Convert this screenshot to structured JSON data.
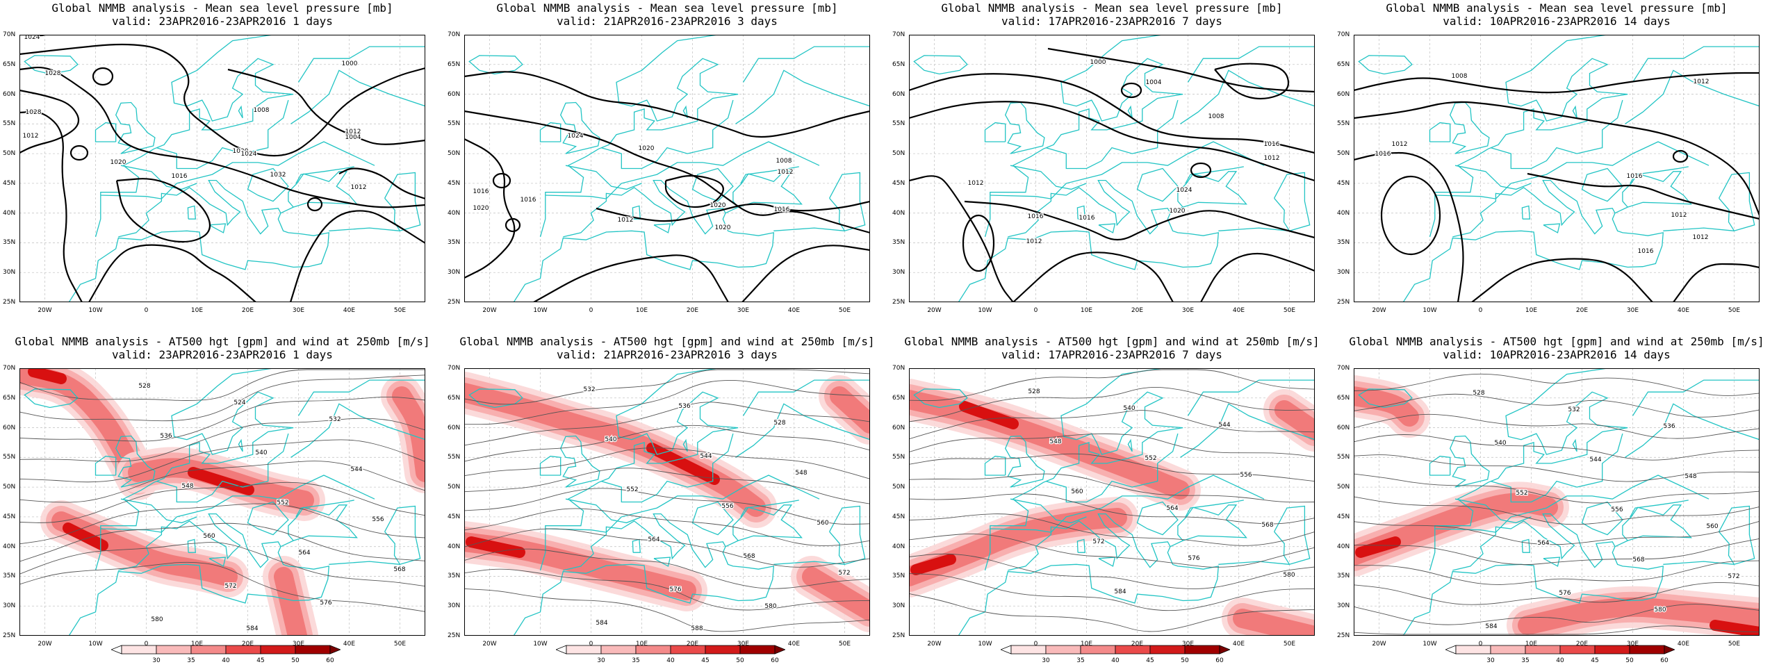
{
  "lon_labels": [
    "20W",
    "10W",
    "0",
    "10E",
    "20E",
    "30E",
    "40E",
    "50E"
  ],
  "lat_labels": [
    "70N",
    "65N",
    "60N",
    "55N",
    "50N",
    "45N",
    "40N",
    "35N",
    "30N",
    "25N"
  ],
  "colorbar_labels": [
    "30",
    "35",
    "40",
    "45",
    "50",
    "60"
  ],
  "colors": {
    "coast": "#22c4c4",
    "contour": "#000000",
    "wind": [
      "#fbd0d0",
      "#f6a0a0",
      "#f06060",
      "#e52020",
      "#c00000"
    ]
  },
  "panels": [
    {
      "id": "mslp-1d",
      "title1": "Global NMMB analysis - Mean sea level pressure [mb]",
      "title2": "valid: 23APR2016-23APR2016  1 days",
      "contour_labels": [
        "1024",
        "1028",
        "1000",
        "1004",
        "1008",
        "1020",
        "1012",
        "1016",
        "1024",
        "1012",
        "1020",
        "1032",
        "1028",
        "1012"
      ]
    },
    {
      "id": "mslp-3d",
      "title1": "Global NMMB analysis - Mean sea level pressure [mb]",
      "title2": "valid: 21APR2016-23APR2016  3 days",
      "contour_labels": [
        "1024",
        "1020",
        "1008",
        "1012",
        "1016",
        "1020",
        "1016",
        "1012",
        "1020",
        "1016",
        "1020"
      ]
    },
    {
      "id": "mslp-7d",
      "title1": "Global NMMB analysis - Mean sea level pressure [mb]",
      "title2": "valid: 17APR2016-23APR2016  7 days",
      "contour_labels": [
        "1000",
        "1004",
        "1008",
        "1012",
        "1016",
        "1020",
        "1024",
        "1012",
        "1016",
        "1016",
        "1012"
      ]
    },
    {
      "id": "mslp-14d",
      "title1": "Global NMMB analysis - Mean sea level pressure [mb]",
      "title2": "valid: 10APR2016-23APR2016  14 days",
      "contour_labels": [
        "1008",
        "1012",
        "1012",
        "1016",
        "1016",
        "1012",
        "1012",
        "1016"
      ]
    },
    {
      "id": "z500-1d",
      "title1": "Global NMMB analysis - AT500 hgt [gpm] and wind at 250mb [m/s]",
      "title2": "valid: 23APR2016-23APR2016  1 days",
      "contour_labels": [
        "528",
        "524",
        "532",
        "536",
        "540",
        "544",
        "548",
        "552",
        "556",
        "560",
        "564",
        "568",
        "572",
        "576",
        "580",
        "584"
      ]
    },
    {
      "id": "z500-3d",
      "title1": "Global NMMB analysis - AT500 hgt [gpm] and wind at 250mb [m/s]",
      "title2": "valid: 21APR2016-23APR2016  3 days",
      "contour_labels": [
        "532",
        "536",
        "528",
        "540",
        "544",
        "548",
        "552",
        "556",
        "560",
        "564",
        "568",
        "572",
        "576",
        "580",
        "584",
        "588"
      ]
    },
    {
      "id": "z500-7d",
      "title1": "Global NMMB analysis - AT500 hgt [gpm] and wind at 250mb [m/s]",
      "title2": "valid: 17APR2016-23APR2016  7 days",
      "contour_labels": [
        "528",
        "540",
        "544",
        "548",
        "552",
        "556",
        "560",
        "564",
        "568",
        "572",
        "576",
        "580",
        "584"
      ]
    },
    {
      "id": "z500-14d",
      "title1": "Global NMMB analysis - AT500 hgt [gpm] and wind at 250mb [m/s]",
      "title2": "valid: 10APR2016-23APR2016  14 days",
      "contour_labels": [
        "528",
        "532",
        "536",
        "540",
        "544",
        "548",
        "552",
        "556",
        "560",
        "564",
        "568",
        "572",
        "576",
        "580",
        "584"
      ]
    }
  ]
}
